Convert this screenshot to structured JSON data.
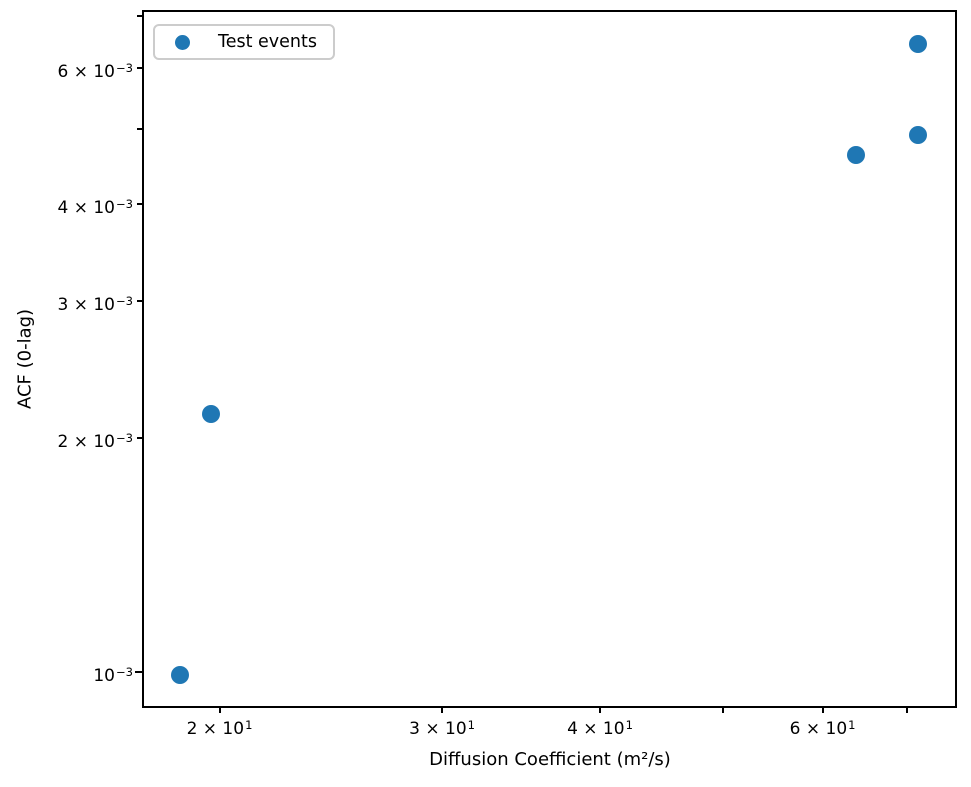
{
  "chart_data": {
    "type": "scatter",
    "title": "",
    "xlabel": "Diffusion Coefficient (m²/s)",
    "ylabel": "ACF (0-lag)",
    "xscale": "log",
    "yscale": "log",
    "xlim": [
      17.4,
      76.5
    ],
    "ylim": [
      0.0009,
      0.0071
    ],
    "grid": false,
    "legend_position": "upper left",
    "series": [
      {
        "name": "Test events",
        "color": "#1f77b4",
        "marker": "circle",
        "points": [
          [
            18.6,
            0.00099
          ],
          [
            19.7,
            0.00215
          ],
          [
            63.8,
            0.00463
          ],
          [
            71.4,
            0.00492
          ],
          [
            71.4,
            0.00644
          ]
        ]
      }
    ],
    "xticks": [
      {
        "value": 20,
        "base": "2 × 10",
        "exp": "1",
        "major": false,
        "labeled": true
      },
      {
        "value": 30,
        "base": "3 × 10",
        "exp": "1",
        "major": false,
        "labeled": true
      },
      {
        "value": 40,
        "base": "4 × 10",
        "exp": "1",
        "major": false,
        "labeled": true
      },
      {
        "value": 50,
        "base": "",
        "exp": "",
        "major": false,
        "labeled": false
      },
      {
        "value": 60,
        "base": "6 × 10",
        "exp": "1",
        "major": false,
        "labeled": true
      },
      {
        "value": 70,
        "base": "",
        "exp": "",
        "major": false,
        "labeled": false
      }
    ],
    "yticks": [
      {
        "value": 0.001,
        "base": "10",
        "exp": "−3",
        "major": true,
        "labeled": true
      },
      {
        "value": 0.002,
        "base": "2 × 10",
        "exp": "−3",
        "major": false,
        "labeled": true
      },
      {
        "value": 0.003,
        "base": "3 × 10",
        "exp": "−3",
        "major": false,
        "labeled": true
      },
      {
        "value": 0.004,
        "base": "4 × 10",
        "exp": "−3",
        "major": false,
        "labeled": true
      },
      {
        "value": 0.005,
        "base": "",
        "exp": "",
        "major": false,
        "labeled": false
      },
      {
        "value": 0.006,
        "base": "6 × 10",
        "exp": "−3",
        "major": false,
        "labeled": true
      },
      {
        "value": 0.007,
        "base": "",
        "exp": "",
        "major": false,
        "labeled": false
      }
    ]
  },
  "colors": {
    "marker": "#1f77b4",
    "spine": "#000000",
    "legend_border": "#cccccc",
    "background": "#ffffff"
  }
}
